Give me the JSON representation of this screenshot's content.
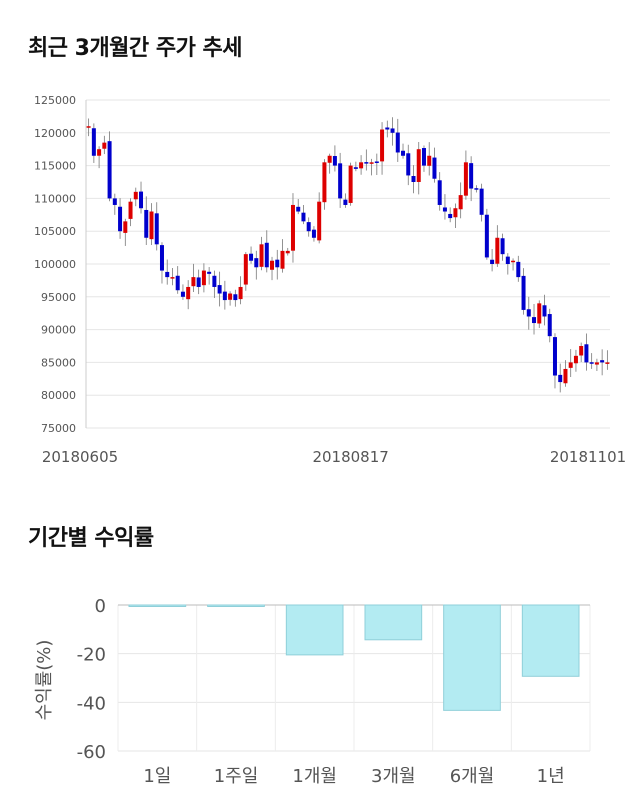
{
  "sections": {
    "price_title": "최근 3개월간 주가 추세",
    "return_title": "기간별 수익률"
  },
  "chart_data": [
    {
      "type": "candlestick",
      "title": "최근 3개월간 주가 추세",
      "ylim": [
        75000,
        125000
      ],
      "y_ticks": [
        75000,
        80000,
        85000,
        90000,
        95000,
        100000,
        105000,
        110000,
        115000,
        120000,
        125000
      ],
      "x_tick_labels": [
        {
          "index": 0,
          "label": "20180605"
        },
        {
          "index": 50,
          "label": "20180817"
        },
        {
          "index": 99,
          "label": "20181101"
        }
      ],
      "grid": true,
      "up_color": "#dd0000",
      "down_color": "#0000cc",
      "closes": [
        121000,
        116500,
        117500,
        118500,
        110000,
        109000,
        105000,
        106500,
        109500,
        111000,
        108500,
        104000,
        108000,
        103000,
        99000,
        98000,
        98000,
        96000,
        95000,
        96500,
        98000,
        96500,
        99000,
        98500,
        96500,
        95500,
        94500,
        95500,
        94500,
        96500,
        101500,
        100500,
        99500,
        103000,
        99500,
        100500,
        99500,
        102000,
        102000,
        109000,
        108000,
        106500,
        105000,
        104000,
        109500,
        115500,
        116500,
        115000,
        110000,
        109000,
        115000,
        114500,
        115500,
        115500,
        115500,
        115500,
        120500,
        120500,
        120000,
        117000,
        116500,
        113500,
        112500,
        117500,
        115000,
        116500,
        113000,
        109000,
        108000,
        107000,
        108500,
        110500,
        115500,
        111500,
        111500,
        107500,
        101000,
        100000,
        104000,
        101500,
        100000,
        100500,
        98000,
        93000,
        92000,
        91000,
        94000,
        92000,
        89000,
        83000,
        82000,
        84000,
        85000,
        86000,
        87500,
        85000,
        85000,
        85000,
        85000,
        85000
      ]
    },
    {
      "type": "bar",
      "title": "기간별 수익률",
      "ylabel": "수익률(%)",
      "categories": [
        "1일",
        "1주일",
        "1개월",
        "3개월",
        "6개월",
        "1년"
      ],
      "values": [
        0,
        -0.6,
        -20.5,
        -14.3,
        -43.3,
        -29.3
      ],
      "ylim": [
        -60,
        0
      ],
      "y_ticks": [
        0,
        -20,
        -40,
        -60
      ],
      "bar_color": "#b3ebf2",
      "grid": true
    }
  ]
}
